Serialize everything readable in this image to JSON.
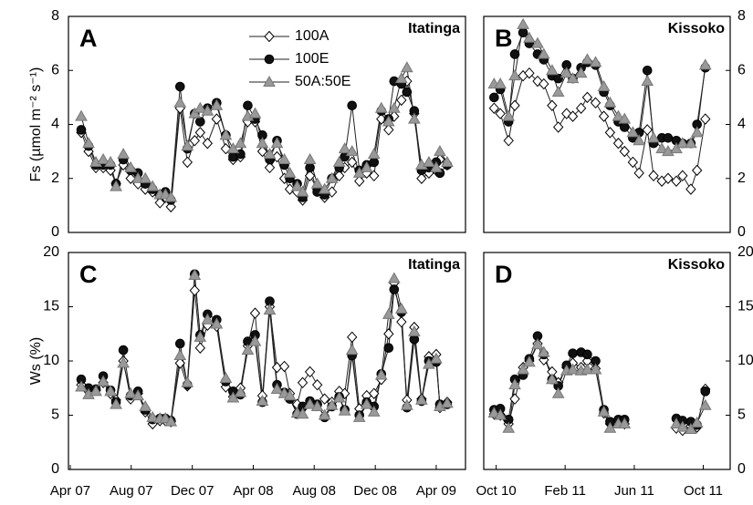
{
  "chart_data": [
    {
      "type": "line",
      "panel_label": "A",
      "title": "Itatinga",
      "y_label": "Fs (µmol m⁻² s⁻¹)",
      "y_axis_side": "left",
      "legend": "upper center",
      "xlim": [
        2007.24,
        2009.41
      ],
      "ylim": [
        0,
        8
      ],
      "yticks": [
        0,
        2,
        4,
        6,
        8
      ],
      "x": [
        2007.31,
        2007.35,
        2007.39,
        2007.43,
        2007.47,
        2007.5,
        2007.54,
        2007.58,
        2007.62,
        2007.66,
        2007.7,
        2007.74,
        2007.77,
        2007.8,
        2007.85,
        2007.89,
        2007.93,
        2007.96,
        2008.0,
        2008.05,
        2008.1,
        2008.14,
        2008.18,
        2008.22,
        2008.26,
        2008.3,
        2008.34,
        2008.38,
        2008.42,
        2008.45,
        2008.49,
        2008.52,
        2008.56,
        2008.6,
        2008.64,
        2008.68,
        2008.72,
        2008.75,
        2008.79,
        2008.83,
        2008.87,
        2008.91,
        2008.95,
        2008.99,
        2009.02,
        2009.06,
        2009.09,
        2009.13,
        2009.17,
        2009.21,
        2009.25,
        2009.27,
        2009.31
      ],
      "series": [
        {
          "name": "100A",
          "color": "#ffffff",
          "marker": "diamond",
          "values": [
            3.7,
            3.0,
            2.4,
            2.4,
            2.3,
            1.8,
            2.5,
            2.0,
            1.8,
            1.6,
            1.5,
            1.1,
            1.3,
            0.95,
            4.6,
            2.6,
            3.4,
            3.7,
            3.3,
            4.2,
            3.1,
            2.7,
            2.8,
            4.1,
            4.1,
            3.0,
            2.4,
            2.8,
            2.0,
            1.6,
            1.5,
            1.2,
            2.1,
            1.6,
            1.3,
            1.5,
            2.1,
            2.4,
            2.6,
            1.9,
            2.2,
            2.1,
            4.2,
            3.8,
            4.3,
            4.9,
            5.6,
            4.4,
            2.0,
            2.2,
            2.3,
            2.7,
            2.5
          ]
        },
        {
          "name": "100E",
          "color": "#111111",
          "marker": "circle",
          "values": [
            3.8,
            3.2,
            2.5,
            2.5,
            2.5,
            1.8,
            2.7,
            2.3,
            2.2,
            1.8,
            1.6,
            1.4,
            1.5,
            1.2,
            5.4,
            3.1,
            4.4,
            4.1,
            4.6,
            4.8,
            3.6,
            2.8,
            2.9,
            4.7,
            4.2,
            3.6,
            2.7,
            3.4,
            2.5,
            2.0,
            1.8,
            1.3,
            2.4,
            1.5,
            1.4,
            2.0,
            2.4,
            2.8,
            4.7,
            2.3,
            2.5,
            2.6,
            4.5,
            4.2,
            5.6,
            5.5,
            5.2,
            4.5,
            2.3,
            2.4,
            2.6,
            2.2,
            2.5
          ]
        },
        {
          "name": "50A:50E",
          "color": "#999999",
          "marker": "triangle",
          "values": [
            4.3,
            3.3,
            2.6,
            2.7,
            2.6,
            1.7,
            2.9,
            2.4,
            2.0,
            2.0,
            1.7,
            1.4,
            1.4,
            1.3,
            4.8,
            3.2,
            4.4,
            4.6,
            4.5,
            4.7,
            3.6,
            3.1,
            3.3,
            4.3,
            4.4,
            3.3,
            2.9,
            3.3,
            2.7,
            2.2,
            1.7,
            1.5,
            2.7,
            1.8,
            1.6,
            2.0,
            2.6,
            3.1,
            3.0,
            2.2,
            2.4,
            2.9,
            4.6,
            4.1,
            4.6,
            5.7,
            6.1,
            4.2,
            2.5,
            2.6,
            2.4,
            3.0,
            2.6
          ]
        }
      ]
    },
    {
      "type": "line",
      "panel_label": "B",
      "title": "Kissoko",
      "y_axis_side": "right",
      "xlim": [
        2010.69,
        2011.88
      ],
      "ylim": [
        0,
        8
      ],
      "yticks": [
        0,
        2,
        4,
        6,
        8
      ],
      "x": [
        2010.74,
        2010.77,
        2010.81,
        2010.84,
        2010.88,
        2010.91,
        2010.95,
        2010.98,
        2011.02,
        2011.05,
        2011.09,
        2011.12,
        2011.16,
        2011.19,
        2011.23,
        2011.27,
        2011.3,
        2011.34,
        2011.37,
        2011.41,
        2011.44,
        2011.48,
        2011.51,
        2011.55,
        2011.58,
        2011.62,
        2011.65,
        2011.69,
        2011.72,
        2011.76
      ],
      "series": [
        {
          "color": "#ffffff",
          "marker": "diamond",
          "values": [
            4.6,
            4.4,
            3.4,
            4.7,
            5.8,
            5.9,
            5.6,
            5.5,
            4.7,
            3.9,
            4.4,
            4.3,
            4.6,
            5.0,
            4.8,
            4.3,
            3.7,
            3.3,
            3.0,
            2.6,
            2.2,
            3.8,
            2.1,
            1.9,
            2.0,
            1.9,
            2.1,
            1.6,
            2.3,
            4.2
          ]
        },
        {
          "color": "#111111",
          "marker": "circle",
          "values": [
            5.0,
            5.3,
            4.1,
            6.6,
            7.4,
            7.0,
            6.6,
            6.4,
            5.8,
            5.7,
            6.2,
            5.7,
            6.1,
            6.3,
            6.2,
            5.2,
            4.7,
            4.1,
            3.9,
            3.5,
            3.7,
            6.0,
            3.3,
            3.5,
            3.5,
            3.4,
            3.3,
            3.3,
            4.0,
            6.1
          ]
        },
        {
          "color": "#999999",
          "marker": "triangle",
          "values": [
            5.5,
            5.5,
            4.3,
            5.8,
            7.7,
            7.2,
            7.0,
            6.6,
            6.0,
            5.2,
            5.9,
            5.7,
            5.9,
            6.4,
            6.3,
            5.4,
            4.8,
            4.3,
            4.2,
            3.7,
            3.4,
            5.6,
            3.5,
            3.1,
            3.0,
            3.1,
            3.3,
            3.3,
            3.7,
            6.2
          ]
        }
      ]
    },
    {
      "type": "line",
      "panel_label": "C",
      "title": "Itatinga",
      "y_label": "Ws (%)",
      "y_axis_side": "left",
      "xlim": [
        2007.24,
        2009.41
      ],
      "ylim": [
        0,
        20
      ],
      "yticks": [
        0,
        5,
        10,
        15,
        20
      ],
      "xticks": [
        {
          "value": 2007.25,
          "label": "Apr 07"
        },
        {
          "value": 2007.583,
          "label": "Aug 07"
        },
        {
          "value": 2007.917,
          "label": "Dec 07"
        },
        {
          "value": 2008.25,
          "label": "Apr 08"
        },
        {
          "value": 2008.583,
          "label": "Aug 08"
        },
        {
          "value": 2008.917,
          "label": "Dec 08"
        },
        {
          "value": 2009.25,
          "label": "Apr 09"
        }
      ],
      "x": [
        2007.31,
        2007.35,
        2007.39,
        2007.43,
        2007.47,
        2007.5,
        2007.54,
        2007.58,
        2007.62,
        2007.66,
        2007.7,
        2007.74,
        2007.77,
        2007.8,
        2007.85,
        2007.89,
        2007.93,
        2007.96,
        2008.0,
        2008.05,
        2008.1,
        2008.14,
        2008.18,
        2008.22,
        2008.26,
        2008.3,
        2008.34,
        2008.38,
        2008.42,
        2008.45,
        2008.49,
        2008.52,
        2008.56,
        2008.6,
        2008.64,
        2008.68,
        2008.72,
        2008.75,
        2008.79,
        2008.83,
        2008.87,
        2008.91,
        2008.95,
        2008.99,
        2009.02,
        2009.06,
        2009.09,
        2009.13,
        2009.17,
        2009.21,
        2009.25,
        2009.27,
        2009.31
      ],
      "series": [
        {
          "color": "#ffffff",
          "marker": "diamond",
          "values": [
            7.8,
            7.2,
            7.3,
            8.0,
            7.0,
            6.4,
            10.0,
            6.5,
            7.0,
            5.3,
            4.2,
            4.5,
            4.5,
            4.4,
            9.8,
            7.7,
            16.5,
            11.2,
            13.3,
            13.2,
            7.6,
            6.7,
            7.5,
            11.4,
            14.4,
            6.8,
            15.0,
            9.4,
            9.5,
            7.0,
            6.0,
            8.0,
            9.0,
            7.8,
            6.5,
            6.2,
            7.2,
            7.0,
            12.2,
            5.6,
            6.8,
            7.0,
            8.3,
            12.5,
            17.2,
            13.6,
            6.4,
            13.1,
            6.5,
            10.4,
            10.6,
            5.7,
            6.2
          ]
        },
        {
          "color": "#111111",
          "marker": "circle",
          "values": [
            8.3,
            7.5,
            7.4,
            8.6,
            7.3,
            6.2,
            11.0,
            6.8,
            7.2,
            5.5,
            4.6,
            4.7,
            4.7,
            4.5,
            11.6,
            7.8,
            18.0,
            12.4,
            14.3,
            13.8,
            8.1,
            7.2,
            6.9,
            11.8,
            12.4,
            6.2,
            15.5,
            7.8,
            7.1,
            6.5,
            5.1,
            5.8,
            6.3,
            6.0,
            4.8,
            5.8,
            6.7,
            5.5,
            10.5,
            5.0,
            6.2,
            5.8,
            8.8,
            11.2,
            16.6,
            14.5,
            5.7,
            12.0,
            6.3,
            10.0,
            9.9,
            6.0,
            6.0
          ]
        },
        {
          "color": "#999999",
          "marker": "triangle",
          "values": [
            7.6,
            6.9,
            7.2,
            8.1,
            7.2,
            6.0,
            9.8,
            7.0,
            6.8,
            5.8,
            4.8,
            4.7,
            4.7,
            4.4,
            10.5,
            8.0,
            17.9,
            12.2,
            13.8,
            13.4,
            8.4,
            6.6,
            7.1,
            11.0,
            11.8,
            6.3,
            14.7,
            7.4,
            7.0,
            6.8,
            5.2,
            5.1,
            6.0,
            5.8,
            5.0,
            5.9,
            6.6,
            5.4,
            11.0,
            4.8,
            6.0,
            5.3,
            8.7,
            14.3,
            17.6,
            14.8,
            5.9,
            12.7,
            6.4,
            9.7,
            10.2,
            5.8,
            6.1
          ]
        }
      ]
    },
    {
      "type": "line",
      "panel_label": "D",
      "title": "Kissoko",
      "y_axis_side": "right",
      "xlim": [
        2010.69,
        2011.88
      ],
      "ylim": [
        0,
        20
      ],
      "yticks": [
        0,
        5,
        10,
        15,
        20
      ],
      "xticks": [
        {
          "value": 2010.75,
          "label": "Oct 10"
        },
        {
          "value": 2011.083,
          "label": "Feb 11"
        },
        {
          "value": 2011.417,
          "label": "Jun 11"
        },
        {
          "value": 2011.75,
          "label": "Oct 11"
        }
      ],
      "x": [
        2010.74,
        2010.77,
        2010.81,
        2010.84,
        2010.88,
        2010.91,
        2010.95,
        2010.98,
        2011.02,
        2011.05,
        2011.09,
        2011.12,
        2011.16,
        2011.19,
        2011.23,
        2011.27,
        2011.3,
        2011.34,
        2011.37,
        2011.41,
        2011.44,
        2011.48,
        2011.51,
        2011.55,
        2011.58,
        2011.62,
        2011.65,
        2011.69,
        2011.72,
        2011.76
      ],
      "series": [
        {
          "color": "#ffffff",
          "marker": "diamond",
          "values": [
            5.1,
            5.0,
            4.2,
            6.5,
            9.4,
            10.0,
            11.6,
            10.1,
            9.0,
            8.0,
            9.4,
            9.8,
            9.4,
            10.0,
            9.3,
            5.2,
            4.2,
            4.3,
            4.2,
            null,
            null,
            null,
            null,
            null,
            null,
            3.8,
            3.6,
            4.0,
            3.9,
            7.4
          ]
        },
        {
          "color": "#111111",
          "marker": "circle",
          "values": [
            5.5,
            5.6,
            4.6,
            8.3,
            8.7,
            10.2,
            12.3,
            10.6,
            8.3,
            7.7,
            9.6,
            10.7,
            10.8,
            10.6,
            10.0,
            5.5,
            4.4,
            4.6,
            4.6,
            null,
            null,
            null,
            null,
            null,
            null,
            4.7,
            4.5,
            4.4,
            4.1,
            7.2
          ]
        },
        {
          "color": "#999999",
          "marker": "triangle",
          "values": [
            5.2,
            5.0,
            3.8,
            7.8,
            9.2,
            9.9,
            11.5,
            10.8,
            8.3,
            7.0,
            9.1,
            9.2,
            9.1,
            9.2,
            9.2,
            5.3,
            3.8,
            4.2,
            4.2,
            null,
            null,
            null,
            null,
            null,
            null,
            4.2,
            3.9,
            3.7,
            4.3,
            5.9
          ]
        }
      ]
    }
  ]
}
